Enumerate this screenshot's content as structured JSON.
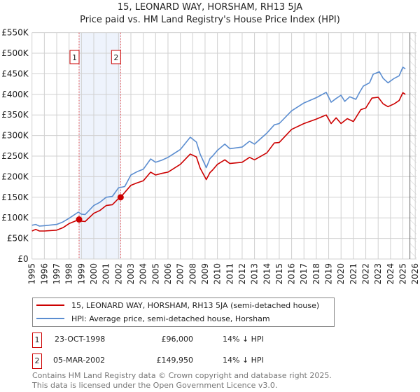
{
  "chart_data": {
    "type": "line",
    "title": "15, LEONARD WAY, HORSHAM, RH13 5JA",
    "subtitle": "Price paid vs. HM Land Registry's House Price Index (HPI)",
    "xlabel": "",
    "ylabel": "",
    "xlim": [
      1995,
      2026
    ],
    "ylim": [
      0,
      550000
    ],
    "grid": true,
    "y_ticks": [
      {
        "v": 0,
        "label": "£0"
      },
      {
        "v": 50000,
        "label": "£50K"
      },
      {
        "v": 100000,
        "label": "£100K"
      },
      {
        "v": 150000,
        "label": "£150K"
      },
      {
        "v": 200000,
        "label": "£200K"
      },
      {
        "v": 250000,
        "label": "£250K"
      },
      {
        "v": 300000,
        "label": "£300K"
      },
      {
        "v": 350000,
        "label": "£350K"
      },
      {
        "v": 400000,
        "label": "£400K"
      },
      {
        "v": 450000,
        "label": "£450K"
      },
      {
        "v": 500000,
        "label": "£500K"
      },
      {
        "v": 550000,
        "label": "£550K"
      }
    ],
    "x_ticks": [
      "1995",
      "1996",
      "1997",
      "1998",
      "1999",
      "2000",
      "2001",
      "2002",
      "2003",
      "2004",
      "2005",
      "2006",
      "2007",
      "2008",
      "2009",
      "2010",
      "2011",
      "2012",
      "2013",
      "2014",
      "2015",
      "2016",
      "2017",
      "2018",
      "2019",
      "2020",
      "2021",
      "2022",
      "2023",
      "2024",
      "2025",
      "2026"
    ],
    "shaded_range": [
      1998.81,
      2002.17
    ],
    "forecast_hatch_from": 2025.57,
    "series": [
      {
        "name": "15, LEONARD WAY, HORSHAM, RH13 5JA (semi-detached house)",
        "color": "#cc0000",
        "points": [
          [
            1995,
            68000
          ],
          [
            1995.3,
            72000
          ],
          [
            1995.6,
            68000
          ],
          [
            1996,
            68000
          ],
          [
            1997,
            70000
          ],
          [
            1997.5,
            76000
          ],
          [
            1998,
            86000
          ],
          [
            1998.81,
            96000
          ],
          [
            1999,
            92000
          ],
          [
            1999.3,
            91000
          ],
          [
            2000,
            111000
          ],
          [
            2000.5,
            118000
          ],
          [
            2001,
            130000
          ],
          [
            2001.5,
            132000
          ],
          [
            2002,
            147000
          ],
          [
            2002.17,
            149950
          ],
          [
            2003,
            179000
          ],
          [
            2003.5,
            185000
          ],
          [
            2004,
            190000
          ],
          [
            2004.6,
            211000
          ],
          [
            2005,
            204000
          ],
          [
            2005.5,
            208000
          ],
          [
            2006,
            211000
          ],
          [
            2007,
            230000
          ],
          [
            2007.8,
            255000
          ],
          [
            2008.3,
            248000
          ],
          [
            2008.6,
            221000
          ],
          [
            2009.1,
            193000
          ],
          [
            2009.4,
            210000
          ],
          [
            2009.6,
            216000
          ],
          [
            2010,
            230000
          ],
          [
            2010.6,
            241000
          ],
          [
            2011,
            232000
          ],
          [
            2012,
            235000
          ],
          [
            2012.6,
            247000
          ],
          [
            2013,
            241000
          ],
          [
            2014,
            258000
          ],
          [
            2014.6,
            282000
          ],
          [
            2015,
            283000
          ],
          [
            2016,
            315000
          ],
          [
            2017,
            329000
          ],
          [
            2018,
            340000
          ],
          [
            2018.8,
            350000
          ],
          [
            2019.2,
            329000
          ],
          [
            2019.6,
            343000
          ],
          [
            2020,
            329000
          ],
          [
            2020.5,
            341000
          ],
          [
            2021,
            334000
          ],
          [
            2021.6,
            363000
          ],
          [
            2022,
            367000
          ],
          [
            2022.5,
            391000
          ],
          [
            2023,
            393000
          ],
          [
            2023.4,
            377000
          ],
          [
            2023.8,
            370000
          ],
          [
            2024.3,
            377000
          ],
          [
            2024.7,
            385000
          ],
          [
            2025,
            404000
          ],
          [
            2025.2,
            400000
          ]
        ]
      },
      {
        "name": "HPI: Average price, semi-detached house, Horsham",
        "color": "#5b8dd0",
        "points": [
          [
            1995,
            82000
          ],
          [
            1995.3,
            84000
          ],
          [
            1995.6,
            80000
          ],
          [
            1996,
            81000
          ],
          [
            1997,
            84000
          ],
          [
            1997.5,
            90000
          ],
          [
            1998,
            99000
          ],
          [
            1998.75,
            114000
          ],
          [
            1999,
            109000
          ],
          [
            1999.3,
            108000
          ],
          [
            2000,
            130000
          ],
          [
            2000.5,
            138000
          ],
          [
            2001,
            150000
          ],
          [
            2001.5,
            152000
          ],
          [
            2002,
            173000
          ],
          [
            2002.5,
            176000
          ],
          [
            2003,
            204000
          ],
          [
            2003.5,
            212000
          ],
          [
            2004,
            218000
          ],
          [
            2004.6,
            243000
          ],
          [
            2005,
            235000
          ],
          [
            2005.5,
            240000
          ],
          [
            2006,
            247000
          ],
          [
            2007,
            266000
          ],
          [
            2007.8,
            296000
          ],
          [
            2008.3,
            284000
          ],
          [
            2008.6,
            255000
          ],
          [
            2009.1,
            222000
          ],
          [
            2009.4,
            244000
          ],
          [
            2009.6,
            250000
          ],
          [
            2010,
            264000
          ],
          [
            2010.6,
            279000
          ],
          [
            2011,
            268000
          ],
          [
            2012,
            272000
          ],
          [
            2012.6,
            286000
          ],
          [
            2013,
            279000
          ],
          [
            2014,
            306000
          ],
          [
            2014.6,
            326000
          ],
          [
            2015,
            329000
          ],
          [
            2016,
            360000
          ],
          [
            2017,
            379000
          ],
          [
            2018,
            392000
          ],
          [
            2018.8,
            405000
          ],
          [
            2019.2,
            381000
          ],
          [
            2019.6,
            390000
          ],
          [
            2020,
            398000
          ],
          [
            2020.3,
            383000
          ],
          [
            2020.7,
            394000
          ],
          [
            2021.2,
            388000
          ],
          [
            2021.5,
            405000
          ],
          [
            2021.8,
            420000
          ],
          [
            2022.3,
            428000
          ],
          [
            2022.6,
            449000
          ],
          [
            2023.1,
            455000
          ],
          [
            2023.4,
            439000
          ],
          [
            2023.8,
            428000
          ],
          [
            2024.3,
            439000
          ],
          [
            2024.7,
            445000
          ],
          [
            2025,
            466000
          ],
          [
            2025.2,
            462000
          ]
        ]
      }
    ],
    "sales": [
      {
        "id": "1",
        "date": "23-OCT-1998",
        "year": 1998.81,
        "price": 96000,
        "price_label": "£96,000",
        "hpi_diff": "14% ↓ HPI"
      },
      {
        "id": "2",
        "date": "05-MAR-2002",
        "year": 2002.17,
        "price": 149950,
        "price_label": "£149,950",
        "hpi_diff": "14% ↓ HPI"
      }
    ]
  },
  "legend": {
    "property": "15, LEONARD WAY, HORSHAM, RH13 5JA (semi-detached house)",
    "hpi": "HPI: Average price, semi-detached house, Horsham"
  },
  "footer": {
    "line1": "Contains HM Land Registry data © Crown copyright and database right 2025.",
    "line2": "This data is licensed under the Open Government Licence v3.0."
  }
}
